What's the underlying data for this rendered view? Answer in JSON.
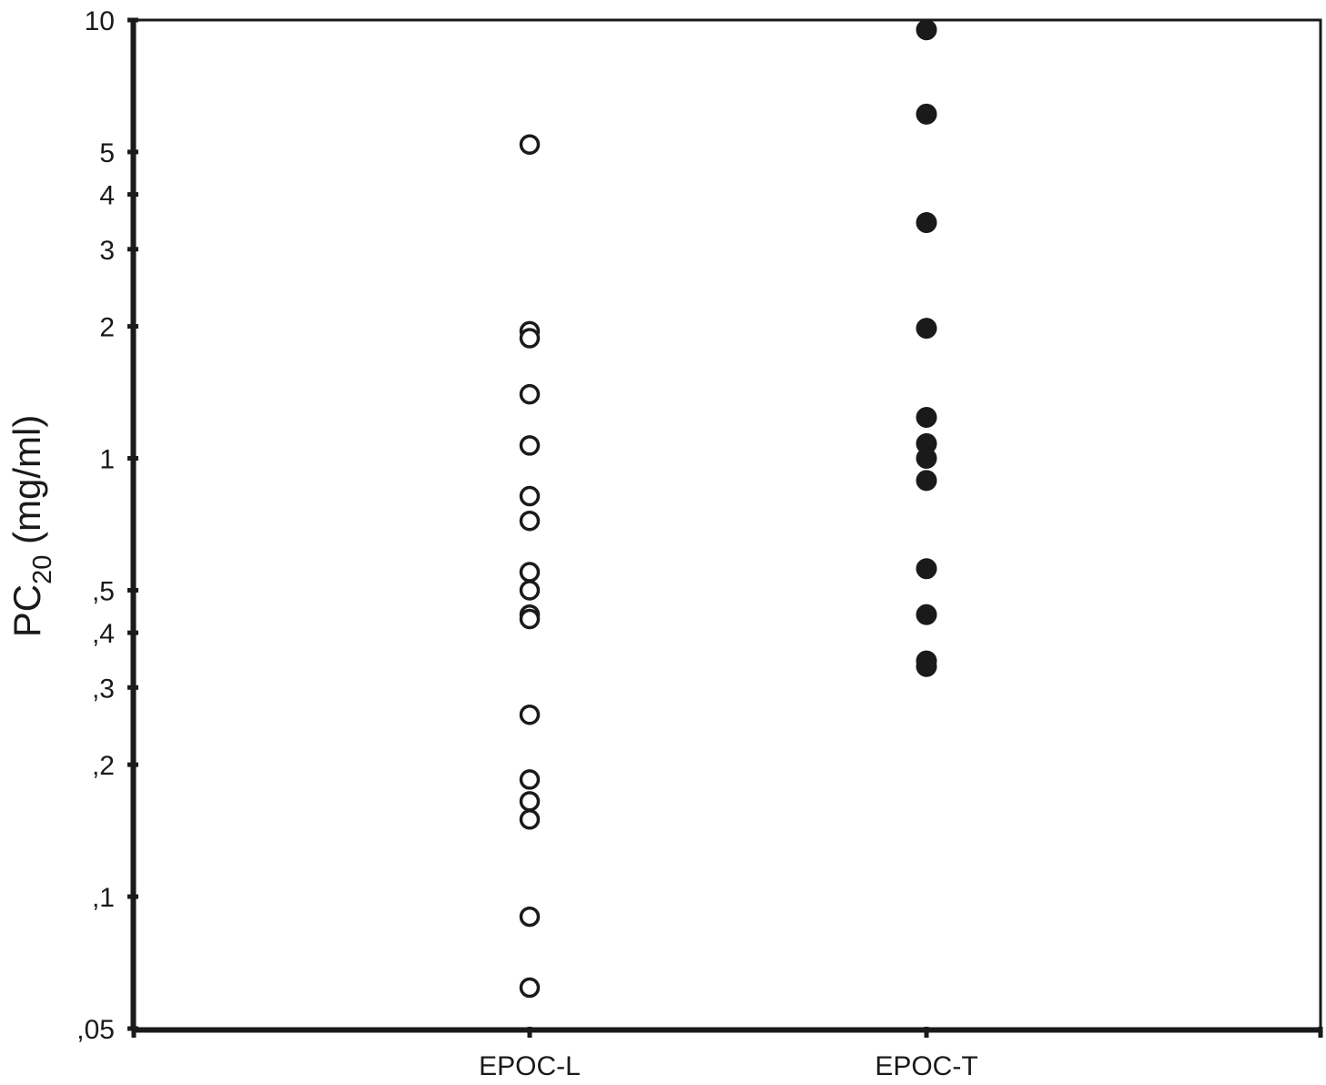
{
  "chart_data": {
    "type": "scatter",
    "title": "",
    "ylabel": {
      "main": "PC",
      "subscript": "20",
      "unit": " (mg/ml)"
    },
    "xlabel": "",
    "yscale": "log",
    "ylim": [
      0.05,
      10
    ],
    "yticks": [
      {
        "value": 10,
        "label": "10"
      },
      {
        "value": 5,
        "label": "5"
      },
      {
        "value": 4,
        "label": "4"
      },
      {
        "value": 3,
        "label": "3"
      },
      {
        "value": 2,
        "label": "2"
      },
      {
        "value": 1,
        "label": "1"
      },
      {
        "value": 0.5,
        "label": ",5"
      },
      {
        "value": 0.4,
        "label": ",4"
      },
      {
        "value": 0.3,
        "label": ",3"
      },
      {
        "value": 0.2,
        "label": ",2"
      },
      {
        "value": 0.1,
        "label": ",1"
      },
      {
        "value": 0.05,
        "label": ",05"
      }
    ],
    "categories": [
      "EPOC-L",
      "EPOC-T"
    ],
    "grid": false,
    "series": [
      {
        "category": "EPOC-L",
        "marker": "open-circle",
        "color": "#1a1a1a",
        "values": [
          5.2,
          1.95,
          1.88,
          1.4,
          1.07,
          0.82,
          0.72,
          0.55,
          0.5,
          0.44,
          0.43,
          0.26,
          0.185,
          0.165,
          0.15,
          0.09,
          0.062
        ]
      },
      {
        "category": "EPOC-T",
        "marker": "filled-circle",
        "color": "#1a1a1a",
        "values": [
          9.5,
          6.1,
          3.45,
          1.98,
          1.24,
          1.08,
          1.0,
          0.89,
          0.56,
          0.44,
          0.345,
          0.335
        ]
      }
    ]
  }
}
